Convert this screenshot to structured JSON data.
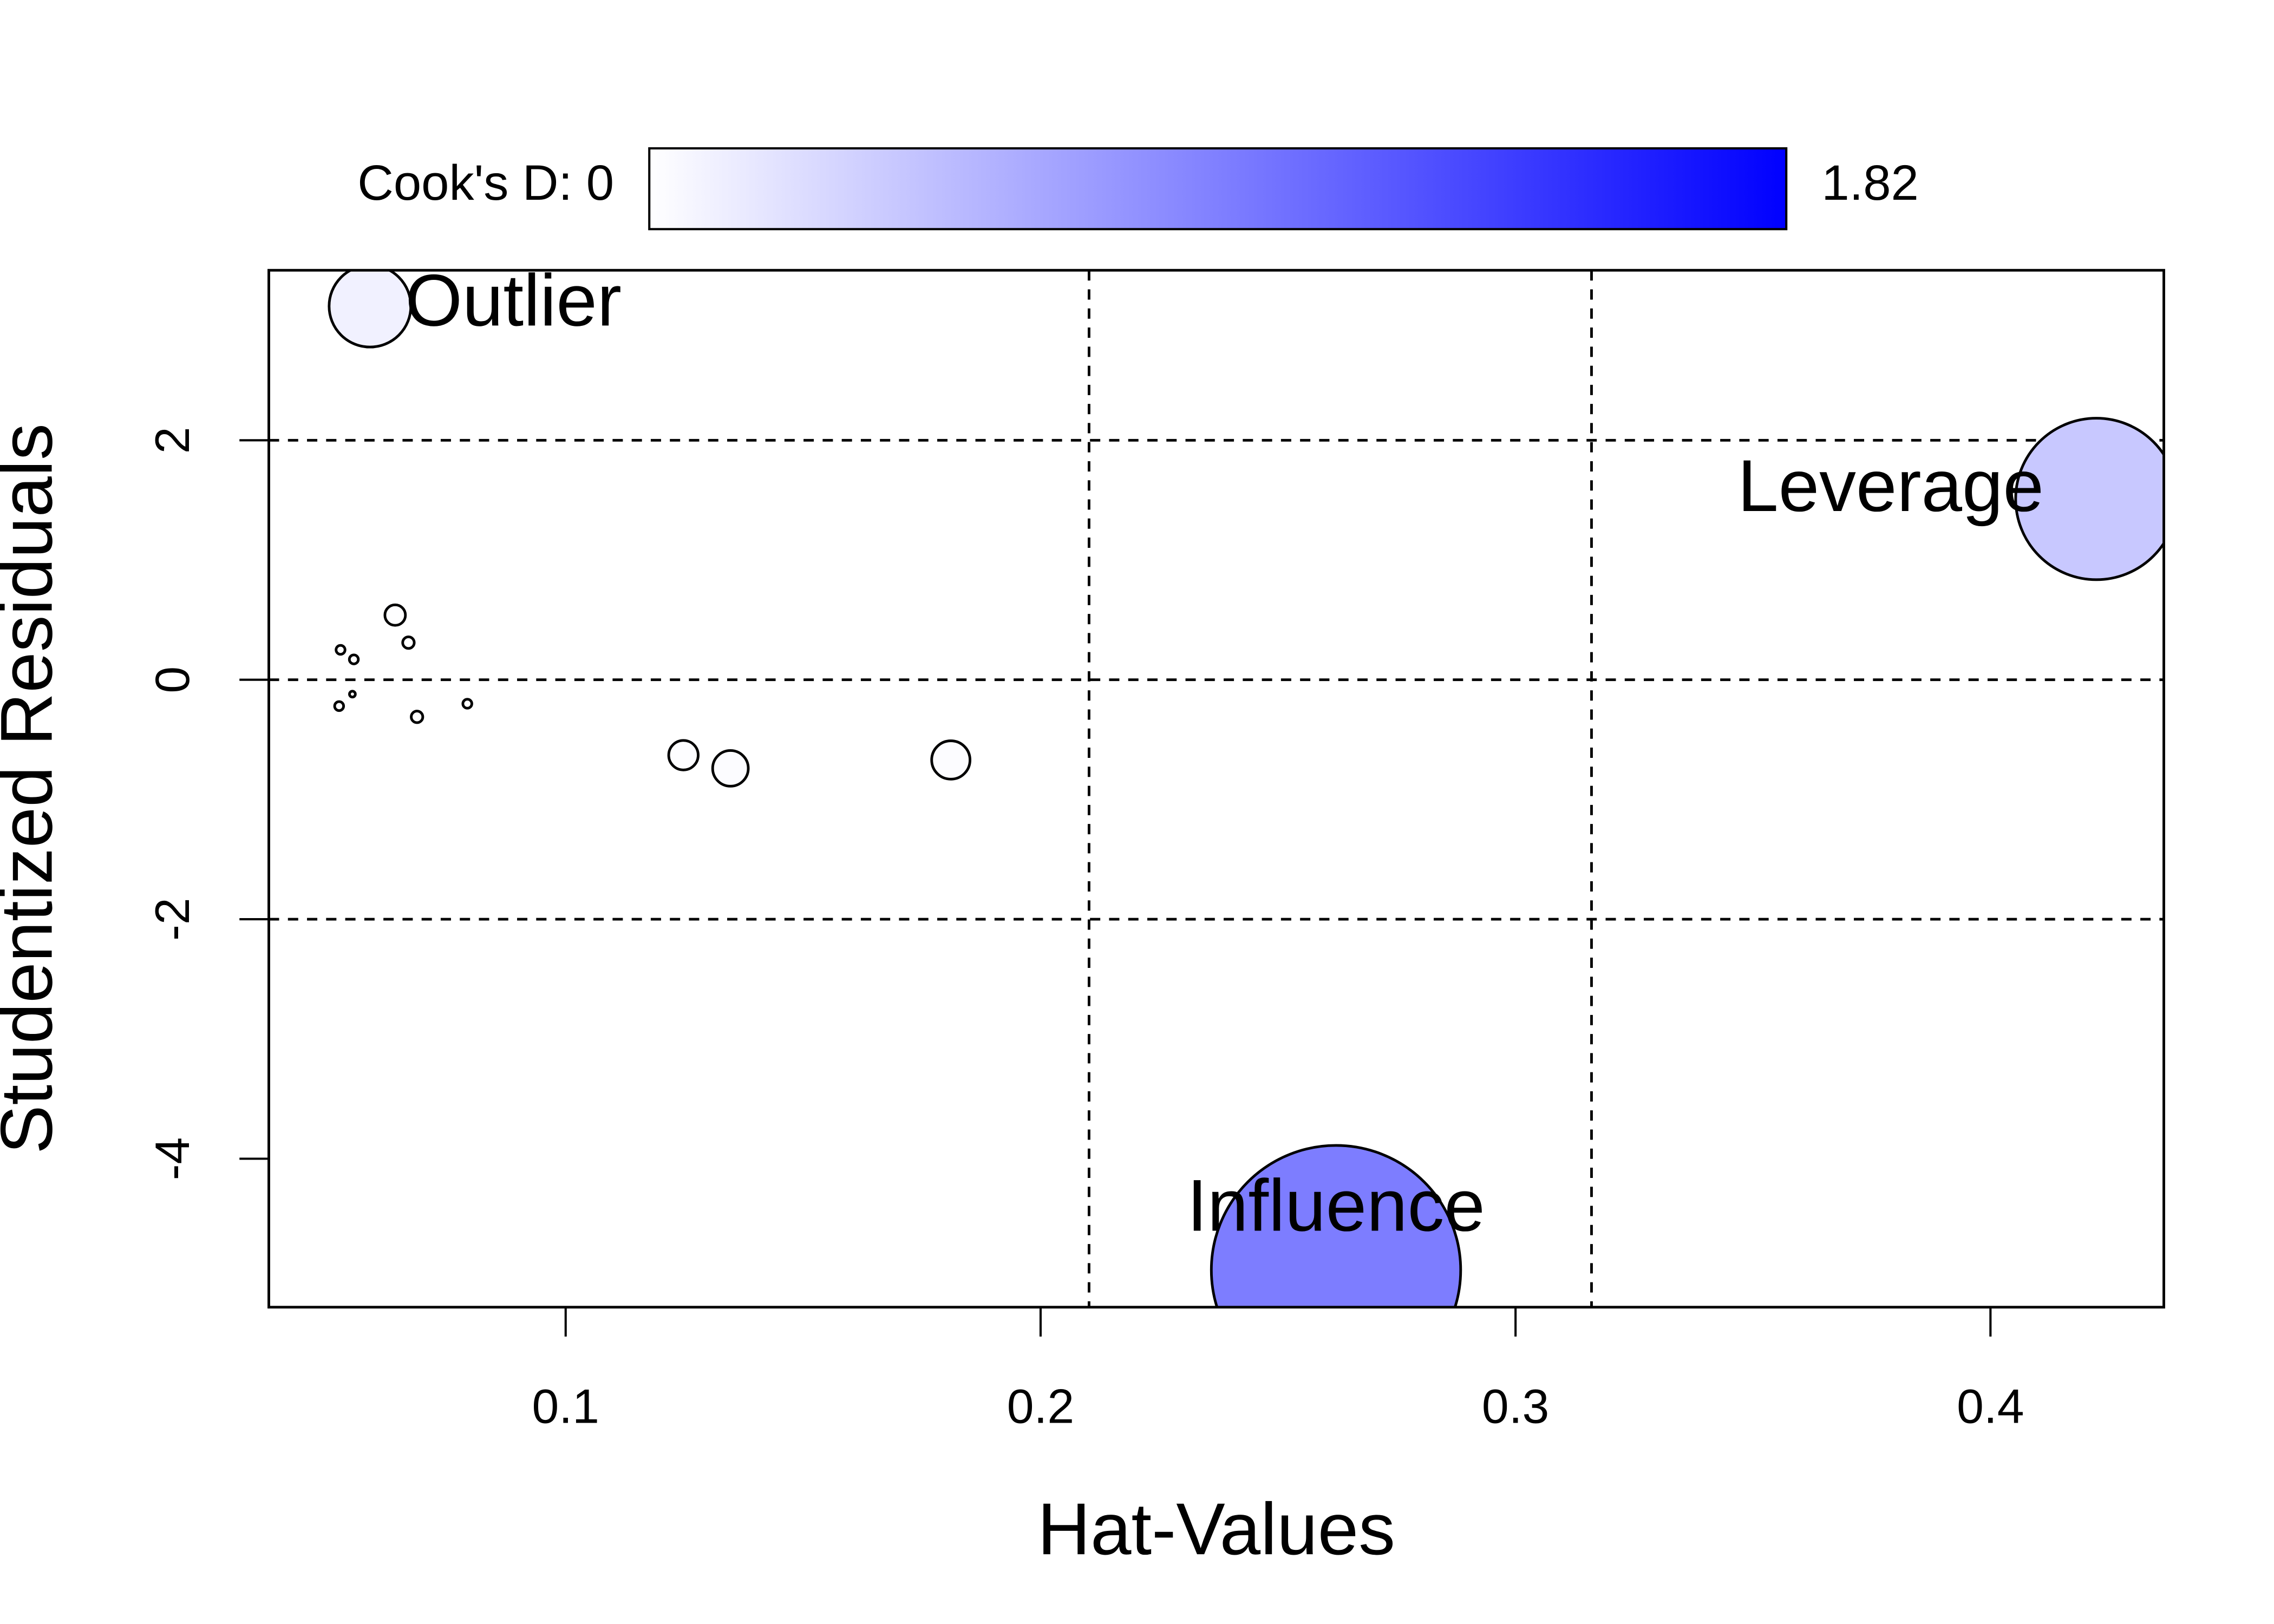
{
  "chart_data": {
    "type": "scatter",
    "xlabel": "Hat-Values",
    "ylabel": "Studentized Residuals",
    "x": [
      0.0588,
      0.4223,
      0.2622,
      0.0641,
      0.0669,
      0.0526,
      0.0554,
      0.0551,
      0.0523,
      0.0687,
      0.0793,
      0.1248,
      0.1347,
      0.1811
    ],
    "values": [
      3.12,
      1.51,
      -4.93,
      0.54,
      0.31,
      0.25,
      0.17,
      -0.12,
      -0.22,
      -0.31,
      -0.2,
      -0.63,
      -0.74,
      -0.67
    ],
    "sizes": [
      0.1,
      0.39,
      0.93,
      0.0063,
      0.002,
      0.0012,
      0.0012,
      0.0005,
      0.0012,
      0.002,
      0.0012,
      0.013,
      0.019,
      0.022
    ],
    "point_labels": [
      "Outlier",
      "Leverage",
      "Influence",
      null,
      null,
      null,
      null,
      null,
      null,
      null,
      null,
      null,
      null,
      null
    ],
    "xlim": [
      0.0375,
      0.4365
    ],
    "ylim": [
      -5.24,
      3.42
    ],
    "xticks": [
      0.1,
      0.2,
      0.3,
      0.4
    ],
    "yticks": [
      -4,
      -2,
      0,
      2
    ],
    "hlines": [
      -2,
      0,
      2
    ],
    "vlines": [
      0.2102,
      0.316
    ],
    "colorbar": {
      "lim": [
        0,
        1.82
      ],
      "colors": [
        "#ffffff",
        "#0000ff"
      ],
      "ticks": [
        {
          "value": 0,
          "label": "Cook's D: 0"
        },
        1.82
      ]
    }
  }
}
